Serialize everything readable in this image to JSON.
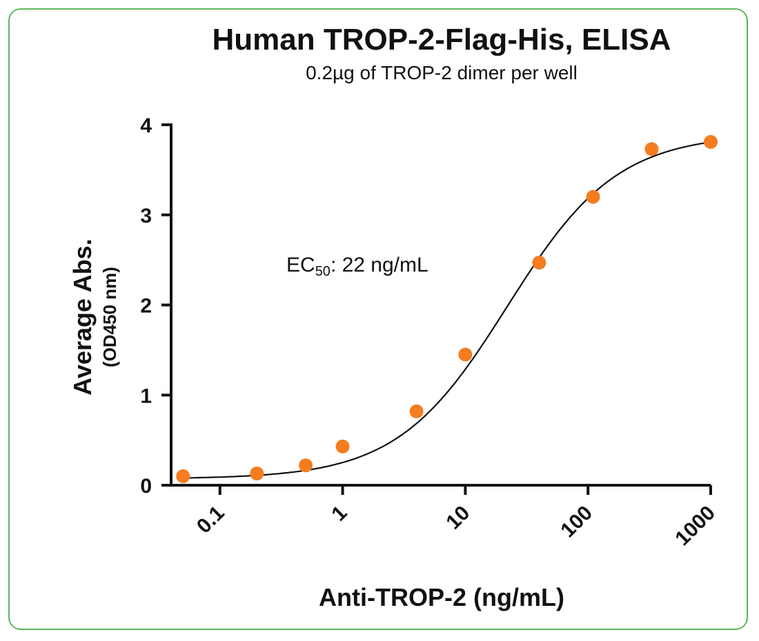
{
  "chart_data": {
    "type": "scatter",
    "title": "Human TROP-2-Flag-His, ELISA",
    "subtitle": "0.2µg of TROP-2 dimer per well",
    "xlabel": "Anti-TROP-2 (ng/mL)",
    "ylabel": "Average Abs.",
    "ylabel_sub": "(OD450 nm)",
    "x_scale": "log",
    "xlim": [
      0.04,
      1000
    ],
    "ylim": [
      0,
      4
    ],
    "x_ticks": [
      0.1,
      1,
      10,
      100,
      1000
    ],
    "x_tick_labels": [
      "0.1",
      "1",
      "10",
      "100",
      "1000"
    ],
    "y_ticks": [
      0,
      1,
      2,
      3,
      4
    ],
    "y_tick_labels": [
      "0",
      "1",
      "2",
      "3",
      "4"
    ],
    "grid": false,
    "annotation": {
      "prefix": "EC",
      "subscript": "50",
      "suffix": ": 22 ng/mL"
    },
    "series": [
      {
        "x": [
          0.05,
          0.2,
          0.5,
          1,
          4,
          10,
          40,
          110,
          330,
          1000
        ],
        "y": [
          0.1,
          0.13,
          0.22,
          0.43,
          0.82,
          1.45,
          2.47,
          3.2,
          3.73,
          3.81
        ],
        "marker_color": "#f57c1f"
      }
    ],
    "fit_curve": {
      "model": "4PL",
      "bottom": 0.07,
      "top": 3.9,
      "ec50": 22,
      "hill": 0.97,
      "color": "#111111"
    }
  }
}
